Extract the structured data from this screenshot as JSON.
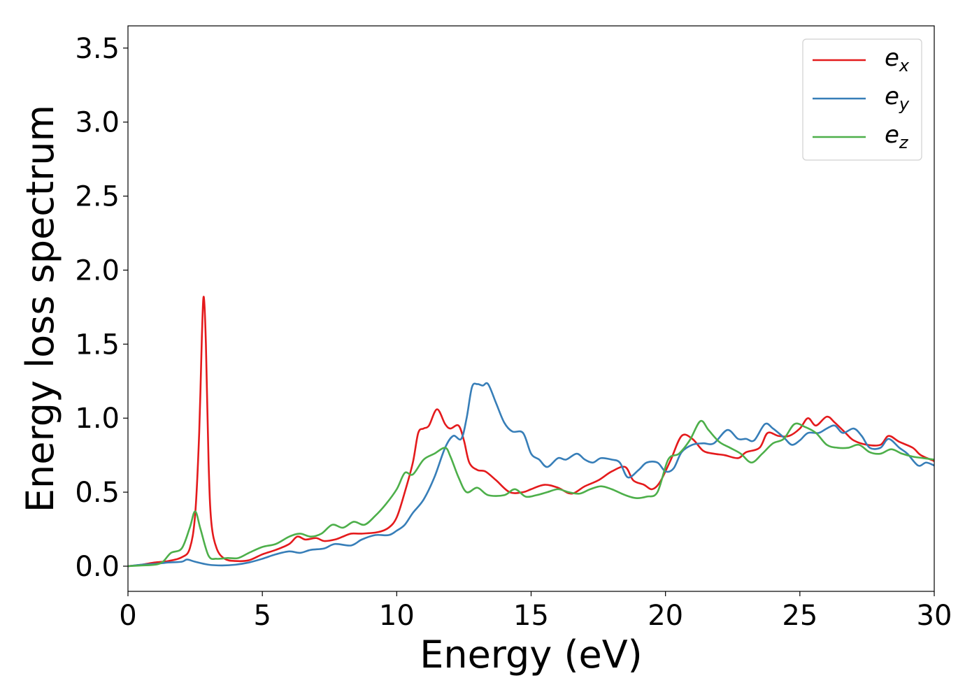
{
  "chart_data": {
    "type": "line",
    "title": "",
    "xlabel": "Energy (eV)",
    "ylabel": "Energy loss spectrum",
    "xlim": [
      0,
      30
    ],
    "ylim": [
      -0.17,
      3.65
    ],
    "x_ticks": [
      0,
      5,
      10,
      15,
      20,
      25,
      30
    ],
    "x_tick_labels": [
      "0",
      "5",
      "10",
      "15",
      "20",
      "25",
      "30"
    ],
    "y_ticks": [
      0.0,
      0.5,
      1.0,
      1.5,
      2.0,
      2.5,
      3.0,
      3.5
    ],
    "y_tick_labels": [
      "0.0",
      "0.5",
      "1.0",
      "1.5",
      "2.0",
      "2.5",
      "3.0",
      "3.5"
    ],
    "grid": false,
    "legend_position": "top-right",
    "series": [
      {
        "name": "e_x",
        "label_base": "e",
        "label_sub": "x",
        "color": "#e41a1c",
        "points": [
          [
            0,
            0
          ],
          [
            0.5,
            0.01
          ],
          [
            1,
            0.025
          ],
          [
            1.5,
            0.035
          ],
          [
            2,
            0.06
          ],
          [
            2.3,
            0.12
          ],
          [
            2.5,
            0.35
          ],
          [
            2.65,
            0.9
          ],
          [
            2.75,
            1.55
          ],
          [
            2.82,
            1.82
          ],
          [
            2.9,
            1.5
          ],
          [
            3.0,
            0.7
          ],
          [
            3.1,
            0.3
          ],
          [
            3.3,
            0.12
          ],
          [
            3.6,
            0.05
          ],
          [
            4,
            0.035
          ],
          [
            4.5,
            0.04
          ],
          [
            5,
            0.08
          ],
          [
            5.5,
            0.11
          ],
          [
            6,
            0.15
          ],
          [
            6.3,
            0.2
          ],
          [
            6.6,
            0.18
          ],
          [
            7,
            0.19
          ],
          [
            7.3,
            0.17
          ],
          [
            7.7,
            0.18
          ],
          [
            8,
            0.2
          ],
          [
            8.3,
            0.22
          ],
          [
            8.7,
            0.22
          ],
          [
            9.3,
            0.23
          ],
          [
            9.7,
            0.26
          ],
          [
            10,
            0.33
          ],
          [
            10.3,
            0.5
          ],
          [
            10.6,
            0.7
          ],
          [
            10.8,
            0.9
          ],
          [
            11.0,
            0.93
          ],
          [
            11.2,
            0.95
          ],
          [
            11.5,
            1.06
          ],
          [
            11.8,
            0.96
          ],
          [
            12.0,
            0.93
          ],
          [
            12.3,
            0.95
          ],
          [
            12.5,
            0.85
          ],
          [
            12.7,
            0.7
          ],
          [
            13,
            0.65
          ],
          [
            13.3,
            0.64
          ],
          [
            13.7,
            0.58
          ],
          [
            14.2,
            0.5
          ],
          [
            14.7,
            0.5
          ],
          [
            15,
            0.52
          ],
          [
            15.5,
            0.55
          ],
          [
            16,
            0.53
          ],
          [
            16.5,
            0.49
          ],
          [
            17,
            0.54
          ],
          [
            17.5,
            0.58
          ],
          [
            18,
            0.64
          ],
          [
            18.5,
            0.67
          ],
          [
            18.8,
            0.58
          ],
          [
            19.2,
            0.55
          ],
          [
            19.5,
            0.52
          ],
          [
            19.8,
            0.57
          ],
          [
            20.2,
            0.72
          ],
          [
            20.6,
            0.88
          ],
          [
            21,
            0.86
          ],
          [
            21.4,
            0.78
          ],
          [
            21.8,
            0.76
          ],
          [
            22.2,
            0.75
          ],
          [
            22.7,
            0.73
          ],
          [
            23,
            0.77
          ],
          [
            23.5,
            0.8
          ],
          [
            23.8,
            0.9
          ],
          [
            24.2,
            0.88
          ],
          [
            24.6,
            0.88
          ],
          [
            25,
            0.93
          ],
          [
            25.3,
            1.0
          ],
          [
            25.6,
            0.95
          ],
          [
            26,
            1.01
          ],
          [
            26.3,
            0.97
          ],
          [
            26.7,
            0.9
          ],
          [
            27,
            0.85
          ],
          [
            27.5,
            0.82
          ],
          [
            28,
            0.82
          ],
          [
            28.3,
            0.88
          ],
          [
            28.7,
            0.84
          ],
          [
            29.2,
            0.8
          ],
          [
            29.5,
            0.75
          ],
          [
            30,
            0.71
          ]
        ]
      },
      {
        "name": "e_y",
        "label_base": "e",
        "label_sub": "y",
        "color": "#377eb8",
        "points": [
          [
            0,
            0
          ],
          [
            0.5,
            0.01
          ],
          [
            1,
            0.015
          ],
          [
            1.5,
            0.025
          ],
          [
            2,
            0.03
          ],
          [
            2.2,
            0.045
          ],
          [
            2.5,
            0.03
          ],
          [
            3,
            0.01
          ],
          [
            3.5,
            0.005
          ],
          [
            4,
            0.01
          ],
          [
            4.5,
            0.025
          ],
          [
            5,
            0.05
          ],
          [
            5.5,
            0.08
          ],
          [
            6,
            0.1
          ],
          [
            6.4,
            0.09
          ],
          [
            6.8,
            0.11
          ],
          [
            7.3,
            0.12
          ],
          [
            7.7,
            0.15
          ],
          [
            8.3,
            0.14
          ],
          [
            8.7,
            0.18
          ],
          [
            9.2,
            0.21
          ],
          [
            9.7,
            0.21
          ],
          [
            10,
            0.24
          ],
          [
            10.3,
            0.28
          ],
          [
            10.6,
            0.36
          ],
          [
            11,
            0.45
          ],
          [
            11.4,
            0.6
          ],
          [
            11.8,
            0.8
          ],
          [
            12.1,
            0.88
          ],
          [
            12.4,
            0.86
          ],
          [
            12.6,
            1.0
          ],
          [
            12.8,
            1.21
          ],
          [
            13.0,
            1.23
          ],
          [
            13.2,
            1.22
          ],
          [
            13.4,
            1.23
          ],
          [
            13.7,
            1.1
          ],
          [
            14,
            0.97
          ],
          [
            14.3,
            0.91
          ],
          [
            14.7,
            0.9
          ],
          [
            15,
            0.76
          ],
          [
            15.3,
            0.72
          ],
          [
            15.6,
            0.67
          ],
          [
            16,
            0.73
          ],
          [
            16.3,
            0.72
          ],
          [
            16.7,
            0.76
          ],
          [
            17,
            0.72
          ],
          [
            17.3,
            0.7
          ],
          [
            17.6,
            0.73
          ],
          [
            18,
            0.72
          ],
          [
            18.3,
            0.7
          ],
          [
            18.6,
            0.6
          ],
          [
            19,
            0.65
          ],
          [
            19.3,
            0.7
          ],
          [
            19.7,
            0.7
          ],
          [
            20,
            0.64
          ],
          [
            20.3,
            0.66
          ],
          [
            20.6,
            0.77
          ],
          [
            21,
            0.82
          ],
          [
            21.4,
            0.83
          ],
          [
            21.8,
            0.83
          ],
          [
            22.3,
            0.92
          ],
          [
            22.7,
            0.86
          ],
          [
            23,
            0.86
          ],
          [
            23.3,
            0.85
          ],
          [
            23.7,
            0.96
          ],
          [
            24,
            0.93
          ],
          [
            24.4,
            0.87
          ],
          [
            24.7,
            0.82
          ],
          [
            25,
            0.85
          ],
          [
            25.3,
            0.9
          ],
          [
            25.7,
            0.9
          ],
          [
            26,
            0.93
          ],
          [
            26.3,
            0.95
          ],
          [
            26.6,
            0.9
          ],
          [
            27,
            0.93
          ],
          [
            27.3,
            0.88
          ],
          [
            27.6,
            0.8
          ],
          [
            28,
            0.8
          ],
          [
            28.3,
            0.86
          ],
          [
            28.7,
            0.8
          ],
          [
            29,
            0.76
          ],
          [
            29.4,
            0.68
          ],
          [
            29.7,
            0.7
          ],
          [
            30,
            0.68
          ]
        ]
      },
      {
        "name": "e_z",
        "label_base": "e",
        "label_sub": "z",
        "color": "#4daf4a",
        "points": [
          [
            0,
            0
          ],
          [
            0.5,
            0.005
          ],
          [
            1,
            0.01
          ],
          [
            1.3,
            0.03
          ],
          [
            1.6,
            0.09
          ],
          [
            2,
            0.12
          ],
          [
            2.3,
            0.26
          ],
          [
            2.5,
            0.37
          ],
          [
            2.7,
            0.25
          ],
          [
            3.0,
            0.07
          ],
          [
            3.3,
            0.05
          ],
          [
            3.7,
            0.055
          ],
          [
            4.1,
            0.055
          ],
          [
            4.5,
            0.09
          ],
          [
            5,
            0.13
          ],
          [
            5.5,
            0.15
          ],
          [
            6,
            0.2
          ],
          [
            6.4,
            0.22
          ],
          [
            6.8,
            0.2
          ],
          [
            7.2,
            0.22
          ],
          [
            7.6,
            0.28
          ],
          [
            8,
            0.26
          ],
          [
            8.4,
            0.3
          ],
          [
            8.8,
            0.28
          ],
          [
            9.2,
            0.34
          ],
          [
            9.6,
            0.42
          ],
          [
            10,
            0.52
          ],
          [
            10.3,
            0.63
          ],
          [
            10.6,
            0.62
          ],
          [
            11,
            0.72
          ],
          [
            11.4,
            0.76
          ],
          [
            11.8,
            0.8
          ],
          [
            12.0,
            0.74
          ],
          [
            12.3,
            0.6
          ],
          [
            12.6,
            0.5
          ],
          [
            13,
            0.53
          ],
          [
            13.4,
            0.48
          ],
          [
            14,
            0.48
          ],
          [
            14.4,
            0.52
          ],
          [
            14.8,
            0.47
          ],
          [
            15.2,
            0.48
          ],
          [
            15.6,
            0.5
          ],
          [
            16,
            0.52
          ],
          [
            16.4,
            0.5
          ],
          [
            16.8,
            0.49
          ],
          [
            17.2,
            0.52
          ],
          [
            17.6,
            0.54
          ],
          [
            18,
            0.52
          ],
          [
            18.5,
            0.48
          ],
          [
            18.9,
            0.46
          ],
          [
            19.3,
            0.47
          ],
          [
            19.7,
            0.5
          ],
          [
            20.1,
            0.72
          ],
          [
            20.5,
            0.76
          ],
          [
            20.9,
            0.85
          ],
          [
            21.3,
            0.98
          ],
          [
            21.6,
            0.92
          ],
          [
            22,
            0.84
          ],
          [
            22.4,
            0.8
          ],
          [
            22.8,
            0.76
          ],
          [
            23.2,
            0.7
          ],
          [
            23.6,
            0.76
          ],
          [
            24,
            0.83
          ],
          [
            24.4,
            0.86
          ],
          [
            24.8,
            0.96
          ],
          [
            25.2,
            0.94
          ],
          [
            25.6,
            0.9
          ],
          [
            26,
            0.82
          ],
          [
            26.4,
            0.8
          ],
          [
            26.8,
            0.8
          ],
          [
            27.2,
            0.82
          ],
          [
            27.6,
            0.77
          ],
          [
            28,
            0.76
          ],
          [
            28.4,
            0.79
          ],
          [
            28.8,
            0.76
          ],
          [
            29.2,
            0.74
          ],
          [
            29.6,
            0.73
          ],
          [
            30,
            0.72
          ]
        ]
      }
    ]
  }
}
